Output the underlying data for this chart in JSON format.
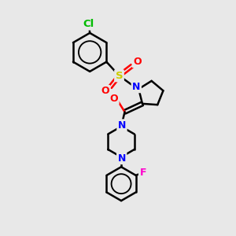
{
  "background_color": "#e8e8e8",
  "bond_color": "#000000",
  "atom_colors": {
    "Cl": "#00bb00",
    "N": "#0000ff",
    "O": "#ff0000",
    "S": "#cccc00",
    "F": "#ff00cc",
    "C": "#000000"
  },
  "bond_width": 1.8,
  "figsize": [
    3.0,
    3.0
  ],
  "dpi": 100
}
